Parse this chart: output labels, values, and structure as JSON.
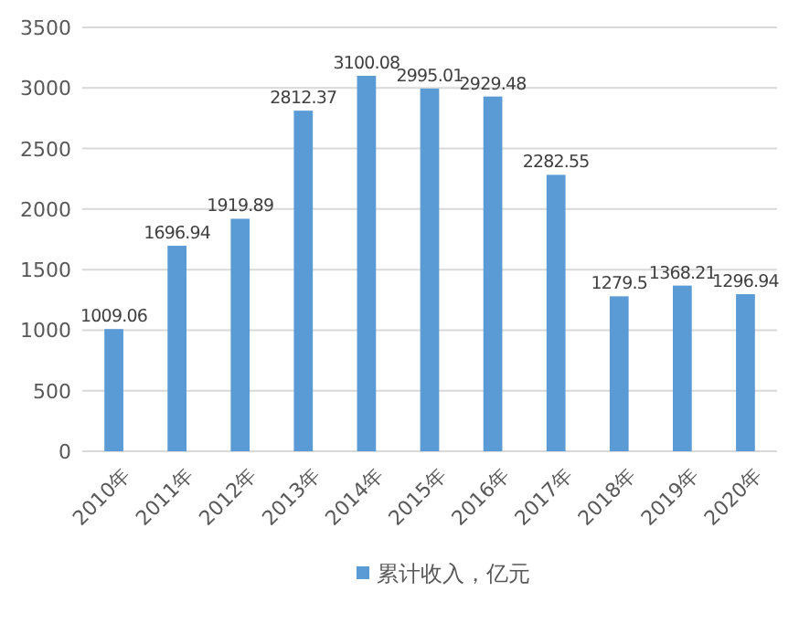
{
  "chart_data": {
    "type": "bar",
    "categories": [
      "2010年",
      "2011年",
      "2012年",
      "2013年",
      "2014年",
      "2015年",
      "2016年",
      "2017年",
      "2018年",
      "2019年",
      "2020年"
    ],
    "series": [
      {
        "name": "累计收入，亿元",
        "color": "#5b9bd5",
        "values": [
          1009.06,
          1696.94,
          1919.89,
          2812.37,
          3100.08,
          2995.01,
          2929.48,
          2282.55,
          1279.5,
          1368.21,
          1296.94
        ]
      }
    ],
    "ylim": [
      0,
      3500
    ],
    "yticks": [
      0,
      500,
      1000,
      1500,
      2000,
      2500,
      3000,
      3500
    ],
    "grid": "y",
    "legend": "bottom",
    "data_labels": true
  }
}
